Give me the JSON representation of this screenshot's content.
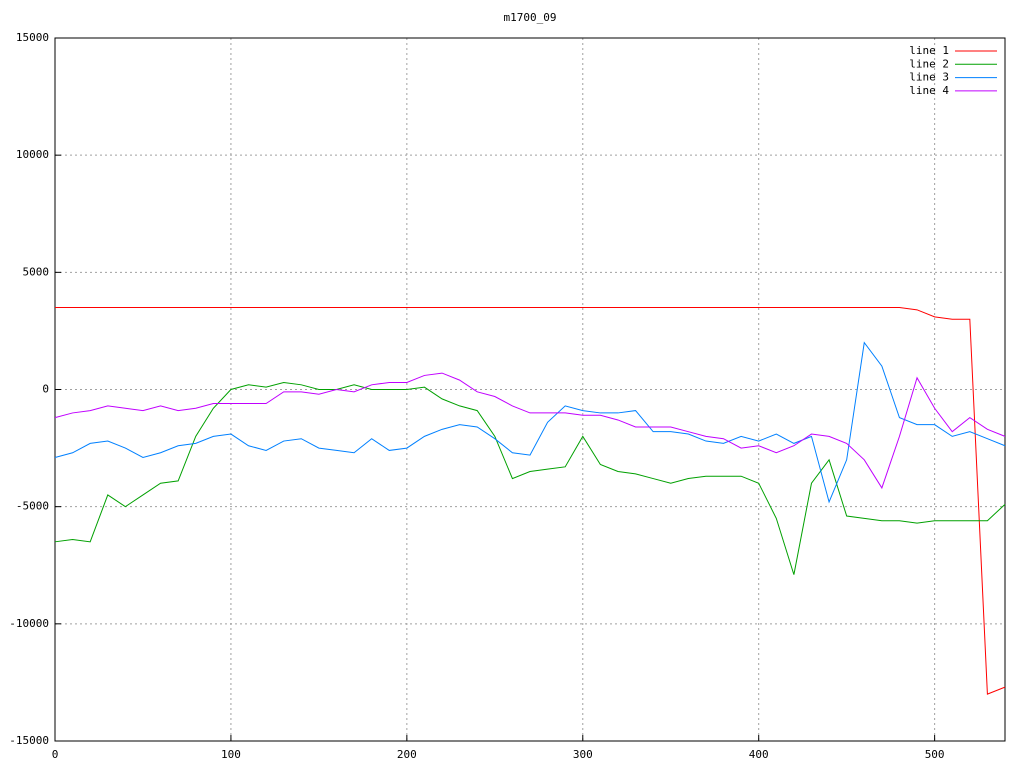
{
  "chart_data": {
    "type": "line",
    "title": "m1700_09",
    "x": [
      0,
      10,
      20,
      30,
      40,
      50,
      60,
      70,
      80,
      90,
      100,
      110,
      120,
      130,
      140,
      150,
      160,
      170,
      180,
      190,
      200,
      210,
      220,
      230,
      240,
      250,
      260,
      270,
      280,
      290,
      300,
      310,
      320,
      330,
      340,
      350,
      360,
      370,
      380,
      390,
      400,
      410,
      420,
      430,
      440,
      450,
      460,
      470,
      480,
      490,
      500,
      510,
      520,
      530,
      540
    ],
    "series": [
      {
        "name": "line 1",
        "color": "#ff0000",
        "values": [
          3500,
          3500,
          3500,
          3500,
          3500,
          3500,
          3500,
          3500,
          3500,
          3500,
          3500,
          3500,
          3500,
          3500,
          3500,
          3500,
          3500,
          3500,
          3500,
          3500,
          3500,
          3500,
          3500,
          3500,
          3500,
          3500,
          3500,
          3500,
          3500,
          3500,
          3500,
          3500,
          3500,
          3500,
          3500,
          3500,
          3500,
          3500,
          3500,
          3500,
          3500,
          3500,
          3500,
          3500,
          3500,
          3500,
          3500,
          3500,
          3500,
          3400,
          3100,
          3000,
          3000,
          -13000,
          -12700
        ]
      },
      {
        "name": "line 2",
        "color": "#00a000",
        "values": [
          -6500,
          -6400,
          -6500,
          -4500,
          -5000,
          -4500,
          -4000,
          -3900,
          -2000,
          -800,
          0,
          200,
          100,
          300,
          200,
          0,
          0,
          200,
          0,
          0,
          0,
          100,
          -400,
          -700,
          -900,
          -2000,
          -3800,
          -3500,
          -3400,
          -3300,
          -2000,
          -3200,
          -3500,
          -3600,
          -3800,
          -4000,
          -3800,
          -3700,
          -3700,
          -3700,
          -4000,
          -5500,
          -7900,
          -4000,
          -3000,
          -5400,
          -5500,
          -5600,
          -5600,
          -5700,
          -5600,
          -5600,
          -5600,
          -5600,
          -4900
        ]
      },
      {
        "name": "line 3",
        "color": "#0080ff",
        "values": [
          -2900,
          -2700,
          -2300,
          -2200,
          -2500,
          -2900,
          -2700,
          -2400,
          -2300,
          -2000,
          -1900,
          -2400,
          -2600,
          -2200,
          -2100,
          -2500,
          -2600,
          -2700,
          -2100,
          -2600,
          -2500,
          -2000,
          -1700,
          -1500,
          -1600,
          -2100,
          -2700,
          -2800,
          -1400,
          -700,
          -900,
          -1000,
          -1000,
          -900,
          -1800,
          -1800,
          -1900,
          -2200,
          -2300,
          -2000,
          -2200,
          -1900,
          -2300,
          -2000,
          -4800,
          -3000,
          2000,
          1000,
          -1200,
          -1500,
          -1500,
          -2000,
          -1800,
          -2100,
          -2400
        ]
      },
      {
        "name": "line 4",
        "color": "#c000ff",
        "values": [
          -1200,
          -1000,
          -900,
          -700,
          -800,
          -900,
          -700,
          -900,
          -800,
          -600,
          -600,
          -600,
          -600,
          -100,
          -100,
          -200,
          0,
          -100,
          200,
          300,
          300,
          600,
          700,
          400,
          -100,
          -300,
          -700,
          -1000,
          -1000,
          -1000,
          -1100,
          -1100,
          -1300,
          -1600,
          -1600,
          -1600,
          -1800,
          -2000,
          -2100,
          -2500,
          -2400,
          -2700,
          -2400,
          -1900,
          -2000,
          -2300,
          -3000,
          -4200,
          -2000,
          500,
          -800,
          -1800,
          -1200,
          -1700,
          -2000
        ]
      }
    ],
    "xlim": [
      0,
      540
    ],
    "ylim": [
      -15000,
      15000
    ],
    "xticks": [
      0,
      100,
      200,
      300,
      400,
      500
    ],
    "yticks": [
      -15000,
      -10000,
      -5000,
      0,
      5000,
      10000,
      15000
    ],
    "grid": true,
    "legend": "top-right"
  }
}
